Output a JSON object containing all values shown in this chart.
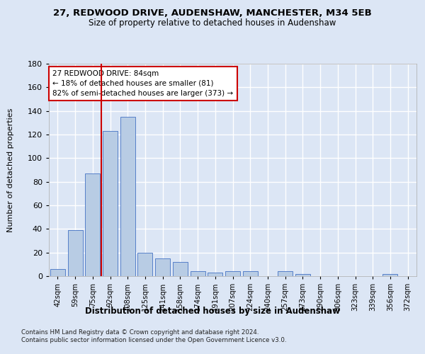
{
  "title1": "27, REDWOOD DRIVE, AUDENSHAW, MANCHESTER, M34 5EB",
  "title2": "Size of property relative to detached houses in Audenshaw",
  "xlabel": "Distribution of detached houses by size in Audenshaw",
  "ylabel": "Number of detached properties",
  "bar_color": "#b8cce4",
  "bar_edge_color": "#4472c4",
  "categories": [
    "42sqm",
    "59sqm",
    "75sqm",
    "92sqm",
    "108sqm",
    "125sqm",
    "141sqm",
    "158sqm",
    "174sqm",
    "191sqm",
    "207sqm",
    "224sqm",
    "240sqm",
    "257sqm",
    "273sqm",
    "290sqm",
    "306sqm",
    "323sqm",
    "339sqm",
    "356sqm",
    "372sqm"
  ],
  "values": [
    6,
    39,
    87,
    123,
    135,
    20,
    15,
    12,
    4,
    3,
    4,
    4,
    0,
    4,
    2,
    0,
    0,
    0,
    0,
    2,
    0
  ],
  "ylim": [
    0,
    180
  ],
  "yticks": [
    0,
    20,
    40,
    60,
    80,
    100,
    120,
    140,
    160,
    180
  ],
  "vline_x_index": 2,
  "vline_color": "#cc0000",
  "annotation_text": "27 REDWOOD DRIVE: 84sqm\n← 18% of detached houses are smaller (81)\n82% of semi-detached houses are larger (373) →",
  "annotation_box_color": "#ffffff",
  "annotation_box_edge": "#cc0000",
  "footer1": "Contains HM Land Registry data © Crown copyright and database right 2024.",
  "footer2": "Contains public sector information licensed under the Open Government Licence v3.0.",
  "background_color": "#dce6f5",
  "grid_color": "#ffffff"
}
